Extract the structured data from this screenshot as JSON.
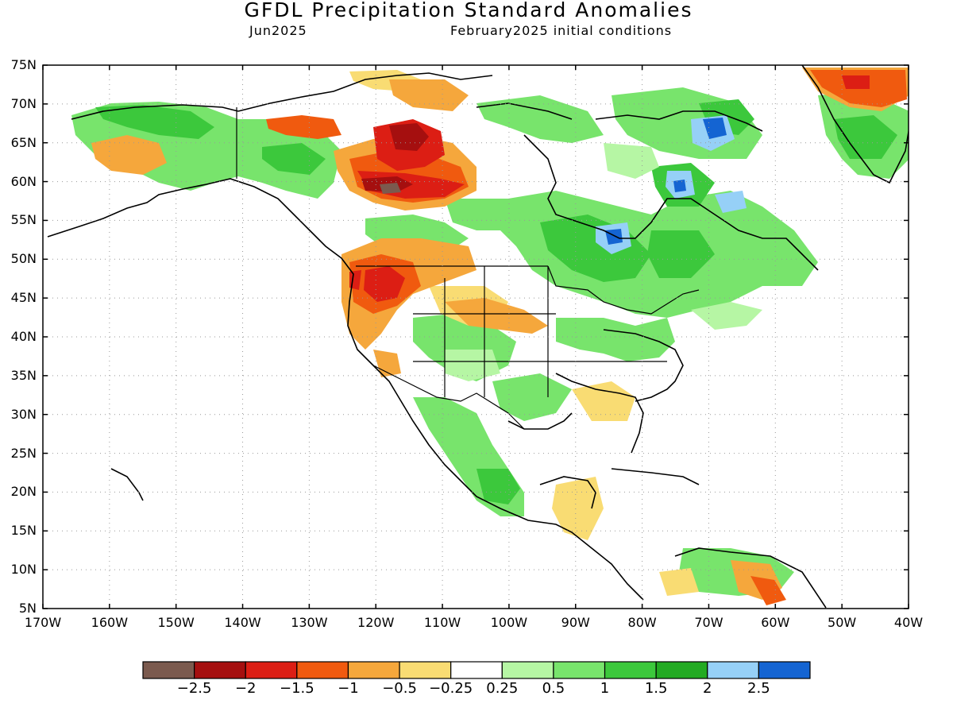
{
  "title": "GFDL Precipitation Standard Anomalies",
  "subtitle_left": "Jun2025",
  "subtitle_right": "February2025 initial conditions",
  "lat_labels": [
    "75N",
    "70N",
    "65N",
    "60N",
    "55N",
    "50N",
    "45N",
    "40N",
    "35N",
    "30N",
    "25N",
    "20N",
    "15N",
    "10N",
    "5N"
  ],
  "lon_labels": [
    "170W",
    "160W",
    "150W",
    "140W",
    "130W",
    "120W",
    "110W",
    "100W",
    "90W",
    "80W",
    "70W",
    "60W",
    "50W",
    "40W"
  ],
  "colorbar": {
    "colors": [
      "#7b5a4e",
      "#a50f0f",
      "#dc1e14",
      "#f05a0f",
      "#f5a73c",
      "#f9dc73",
      "#ffffff",
      "#b6f6a4",
      "#78e46c",
      "#3cc83c",
      "#23aa23",
      "#96d0f7",
      "#1464d2"
    ],
    "labels": [
      "−2.5",
      "−2",
      "−1.5",
      "−1",
      "−0.5",
      "−0.25",
      "0.25",
      "0.5",
      "1",
      "1.5",
      "2",
      "2.5"
    ]
  },
  "map_colors": {
    "coast": "#000000",
    "grid": "#999999"
  }
}
